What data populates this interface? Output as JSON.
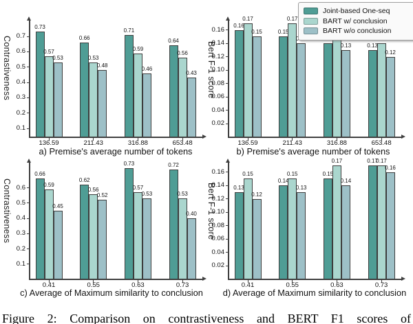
{
  "figure": {
    "caption_partial": "Figure 2: Comparison on contrastiveness and BERT F1 scores of"
  },
  "legend": {
    "position": "top-right",
    "items": [
      {
        "label": "Joint-based One-seq",
        "color": "#4F9D95"
      },
      {
        "label": "BART w/ conclusion",
        "color": "#AAD6CE"
      },
      {
        "label": "BART w/o conclusion",
        "color": "#9DC0C7"
      }
    ]
  },
  "chart_data": [
    {
      "id": "a",
      "type": "bar",
      "title": "a) Premise's average number of tokens",
      "ylabel": "Contrastiveness",
      "categories": [
        "136.59",
        "211.43",
        "316.88",
        "653.48"
      ],
      "series": [
        {
          "name": "Joint-based One-seq",
          "values": [
            0.73,
            0.66,
            0.71,
            0.64
          ]
        },
        {
          "name": "BART w/ conclusion",
          "values": [
            0.57,
            0.53,
            0.59,
            0.56
          ]
        },
        {
          "name": "BART w/o conclusion",
          "values": [
            0.53,
            0.48,
            0.46,
            0.43
          ]
        }
      ],
      "ytick_labels": [
        "0.1",
        "0.2",
        "0.3",
        "0.4",
        "0.5",
        "0.6",
        "0.7"
      ],
      "ylim": [
        0.042,
        0.803
      ],
      "grid": false,
      "bar_value_labels": true
    },
    {
      "id": "b",
      "type": "bar",
      "title": "b) Premise's average number of tokens",
      "ylabel": "Bert F-1 score",
      "categories": [
        "136.59",
        "211.43",
        "316.88",
        "653.48"
      ],
      "series": [
        {
          "name": "Joint-based One-seq",
          "values": [
            0.16,
            0.15,
            0.14,
            0.13
          ]
        },
        {
          "name": "BART w/ conclusion",
          "values": [
            0.17,
            0.17,
            0.15,
            0.14
          ]
        },
        {
          "name": "BART w/o conclusion",
          "values": [
            0.15,
            0.14,
            0.13,
            0.12
          ]
        }
      ],
      "ytick_labels": [
        "0.02",
        "0.04",
        "0.06",
        "0.08",
        "0.10",
        "0.12",
        "0.14",
        "0.16"
      ],
      "ylim": [
        0,
        0.174
      ],
      "grid": false,
      "bar_value_labels": true
    },
    {
      "id": "c",
      "type": "bar",
      "title": "c) Average of Maximum similarity to conclusion",
      "ylabel": "Contrastiveness",
      "categories": [
        "0.41",
        "0.55",
        "0.63",
        "0.73"
      ],
      "series": [
        {
          "name": "Joint-based One-seq",
          "values": [
            0.66,
            0.62,
            0.73,
            0.72
          ]
        },
        {
          "name": "BART w/ conclusion",
          "values": [
            0.59,
            0.56,
            0.57,
            0.53
          ]
        },
        {
          "name": "BART w/o conclusion",
          "values": [
            0.45,
            0.52,
            0.53,
            0.4
          ]
        }
      ],
      "ytick_labels": [
        "0.1",
        "0.2",
        "0.3",
        "0.4",
        "0.5",
        "0.6"
      ],
      "ylim": [
        0,
        0.765
      ],
      "grid": false,
      "bar_value_labels": true
    },
    {
      "id": "d",
      "type": "bar",
      "title": "d) Average of Maximum similarity to conclusion",
      "ylabel": "Bert F-1 score",
      "categories": [
        "0.41",
        "0.55",
        "0.63",
        "0.73"
      ],
      "series": [
        {
          "name": "Joint-based One-seq",
          "values": [
            0.13,
            0.14,
            0.15,
            0.17
          ]
        },
        {
          "name": "BART w/ conclusion",
          "values": [
            0.15,
            0.15,
            0.17,
            0.17
          ]
        },
        {
          "name": "BART w/o conclusion",
          "values": [
            0.12,
            0.13,
            0.14,
            0.16
          ]
        }
      ],
      "ytick_labels": [
        "0.02",
        "0.04",
        "0.06",
        "0.08",
        "0.10",
        "0.12",
        "0.14",
        "0.16"
      ],
      "ylim": [
        0,
        0.174
      ],
      "grid": false,
      "bar_value_labels": true
    }
  ]
}
